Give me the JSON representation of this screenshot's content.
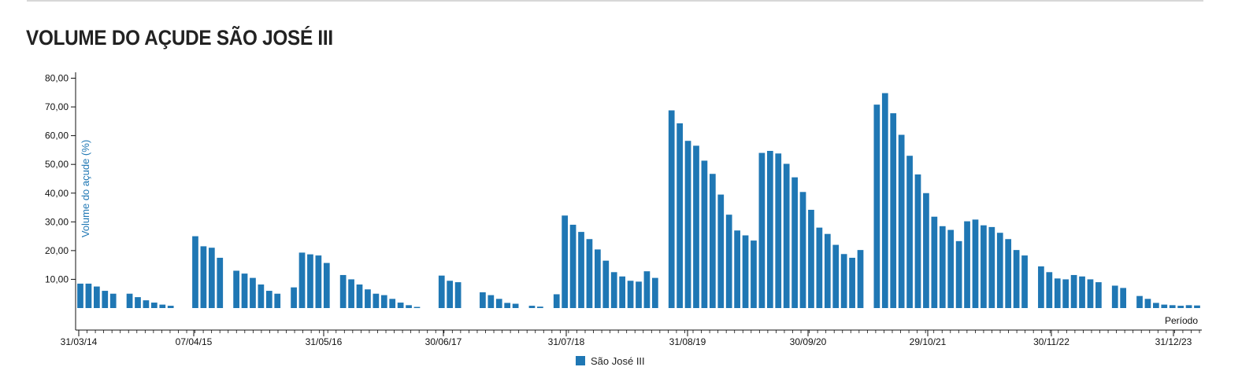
{
  "page": {
    "title": "VOLUME DO AÇUDE SÃO JOSÉ III"
  },
  "colors": {
    "bar": "#1f77b4",
    "axis": "#111111",
    "ylabel": "#1f77b4"
  },
  "chart_data": {
    "type": "bar",
    "ylabel": "Volume do açude (%)",
    "xlabel": "Período",
    "ylim": [
      0,
      80
    ],
    "y_ticks": [
      "10,00",
      "20,00",
      "30,00",
      "40,00",
      "50,00",
      "60,00",
      "70,00",
      "80,00"
    ],
    "x_tick_labels": [
      "31/03/14",
      "07/04/15",
      "31/05/16",
      "30/06/17",
      "31/07/18",
      "31/08/19",
      "30/09/20",
      "29/10/21",
      "30/11/22",
      "31/12/23"
    ],
    "grid": false,
    "legend_position": "bottom",
    "series": [
      {
        "name": "São José III",
        "values": [
          8.5,
          8.5,
          7.5,
          6,
          5,
          0,
          5,
          3.8,
          2.7,
          1.9,
          1.2,
          0.8,
          0,
          0,
          25,
          21.5,
          21,
          17.5,
          0,
          13,
          12,
          10.5,
          8.2,
          6,
          5,
          0,
          7.2,
          19.3,
          18.7,
          18.3,
          15.7,
          0,
          11.5,
          10,
          8.2,
          6.5,
          5,
          4.5,
          3.2,
          1.9,
          1,
          0.4,
          0,
          0,
          11.3,
          9.5,
          9,
          0,
          0,
          5.5,
          4.5,
          3.2,
          1.8,
          1.5,
          0,
          0.8,
          0.5,
          0,
          4.8,
          32.2,
          29,
          26.5,
          24,
          20.4,
          16.5,
          12.5,
          11,
          9.5,
          9.2,
          12.8,
          10.5,
          0,
          68.8,
          64.3,
          58.2,
          56.5,
          51.3,
          46.7,
          39.5,
          32.5,
          27,
          25.3,
          23.5,
          54,
          54.7,
          53.8,
          50.2,
          45.5,
          40.4,
          34.2,
          28,
          25.8,
          22,
          18.8,
          17.5,
          20.2,
          0,
          70.8,
          74.8,
          67.8,
          60.3,
          53,
          46.5,
          40,
          31.8,
          28.5,
          27.2,
          23.3,
          30.2,
          30.8,
          28.8,
          28.2,
          26.2,
          24,
          20.2,
          18.3,
          0,
          14.5,
          12.5,
          10.3,
          10,
          11.5,
          11,
          10,
          9,
          0,
          7.8,
          7,
          0,
          4.2,
          3.2,
          1.8,
          1.2,
          1,
          0.8,
          1,
          0.9
        ]
      }
    ]
  }
}
